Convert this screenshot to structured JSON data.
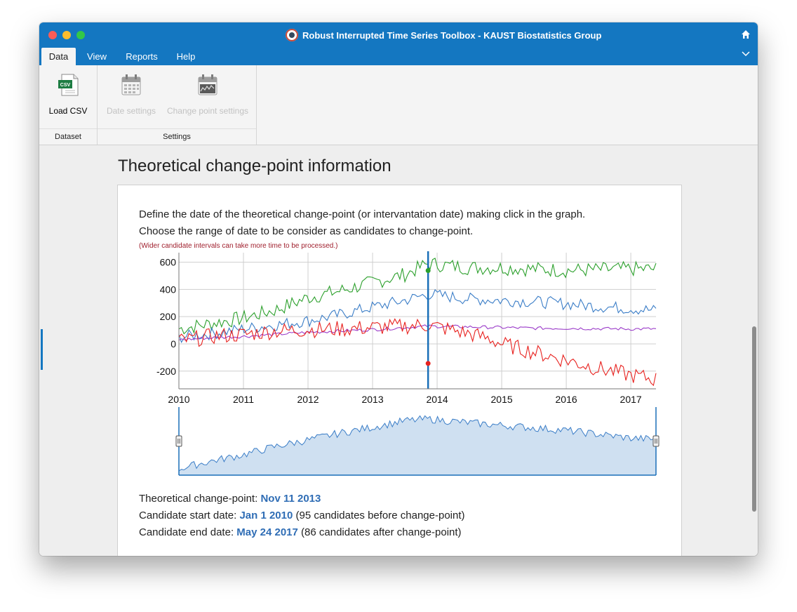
{
  "window": {
    "title": "Robust Interrupted Time Series Toolbox - KAUST Biostatistics Group",
    "traffic_lights": [
      "close-icon",
      "minimize-icon",
      "zoom-icon"
    ],
    "right_icons": [
      "home-icon",
      "chevron-down-icon"
    ]
  },
  "menu": {
    "tabs": [
      {
        "label": "Data",
        "active": true
      },
      {
        "label": "View",
        "active": false
      },
      {
        "label": "Reports",
        "active": false
      },
      {
        "label": "Help",
        "active": false
      }
    ]
  },
  "ribbon": {
    "groups": [
      {
        "label": "Dataset",
        "buttons": [
          {
            "label": "Load CSV",
            "icon": "csv-file-icon",
            "enabled": true
          }
        ]
      },
      {
        "label": "Settings",
        "buttons": [
          {
            "label": "Date settings",
            "icon": "calendar-icon",
            "enabled": false
          },
          {
            "label": "Change point settings",
            "icon": "calendar-chart-icon",
            "enabled": false
          }
        ]
      }
    ]
  },
  "page": {
    "section_title": "Theoretical change-point information",
    "description_1": "Define the date of the theoretical change-point (or intervantation date) making click in the graph.",
    "description_2": "Choose the range of date to be consider as candidates to change-point.",
    "note": "(Wider candidate intervals can take more time to be processed.)"
  },
  "info": {
    "change_point_label": "Theoretical change-point:",
    "change_point_value": "Nov 11 2013",
    "start_label": "Candidate start date:",
    "start_value": "Jan 1 2010",
    "start_extra": "(95 candidates before change-point)",
    "end_label": "Candidate end date:",
    "end_value": "May 24 2017",
    "end_extra": "(86 candidates after change-point)"
  },
  "colors": {
    "accent": "#1477c1",
    "green": "#2ca02c",
    "blue": "#3a7dc7",
    "red": "#e8221f",
    "purple": "#9b3cc9",
    "note": "#a0202e",
    "value_link": "#2f6db5"
  },
  "chart_data": {
    "type": "line",
    "x_range": [
      2010.0,
      2017.39
    ],
    "ylim": [
      -330,
      670
    ],
    "x_ticks": [
      "2010",
      "2011",
      "2012",
      "2013",
      "2014",
      "2015",
      "2016",
      "2017"
    ],
    "y_ticks": [
      "600",
      "400",
      "200",
      "0",
      "-200"
    ],
    "grid": true,
    "change_point": 2013.86,
    "series": [
      {
        "color": "#2ca02c",
        "values": [
          [
            2010.0,
            110
          ],
          [
            2010.5,
            150
          ],
          [
            2011.0,
            190
          ],
          [
            2011.5,
            250
          ],
          [
            2012.0,
            340
          ],
          [
            2012.5,
            390
          ],
          [
            2013.0,
            450
          ],
          [
            2013.5,
            510
          ],
          [
            2013.86,
            590
          ],
          [
            2014.5,
            560
          ],
          [
            2015.0,
            560
          ],
          [
            2015.5,
            550
          ],
          [
            2016.0,
            540
          ],
          [
            2016.5,
            545
          ],
          [
            2017.0,
            550
          ],
          [
            2017.39,
            550
          ]
        ]
      },
      {
        "color": "#3a7dc7",
        "values": [
          [
            2010.0,
            50
          ],
          [
            2010.5,
            75
          ],
          [
            2011.0,
            110
          ],
          [
            2011.5,
            140
          ],
          [
            2012.0,
            170
          ],
          [
            2012.5,
            215
          ],
          [
            2013.0,
            270
          ],
          [
            2013.5,
            320
          ],
          [
            2013.86,
            365
          ],
          [
            2014.5,
            330
          ],
          [
            2015.0,
            320
          ],
          [
            2015.5,
            310
          ],
          [
            2016.0,
            295
          ],
          [
            2016.5,
            275
          ],
          [
            2017.0,
            260
          ],
          [
            2017.39,
            245
          ]
        ]
      },
      {
        "color": "#9b3cc9",
        "values": [
          [
            2010.0,
            30
          ],
          [
            2010.5,
            45
          ],
          [
            2011.0,
            55
          ],
          [
            2011.5,
            70
          ],
          [
            2012.0,
            85
          ],
          [
            2012.5,
            95
          ],
          [
            2013.0,
            105
          ],
          [
            2013.5,
            120
          ],
          [
            2013.86,
            130
          ],
          [
            2014.5,
            125
          ],
          [
            2015.0,
            120
          ],
          [
            2015.5,
            115
          ],
          [
            2016.0,
            115
          ],
          [
            2016.5,
            112
          ],
          [
            2017.0,
            110
          ],
          [
            2017.39,
            110
          ]
        ]
      },
      {
        "color": "#e8221f",
        "values": [
          [
            2010.0,
            20
          ],
          [
            2010.5,
            55
          ],
          [
            2011.0,
            70
          ],
          [
            2011.5,
            95
          ],
          [
            2012.0,
            105
          ],
          [
            2012.5,
            110
          ],
          [
            2013.0,
            120
          ],
          [
            2013.5,
            130
          ],
          [
            2013.86,
            140
          ],
          [
            2014.3,
            95
          ],
          [
            2014.8,
            40
          ],
          [
            2015.0,
            0
          ],
          [
            2015.5,
            -60
          ],
          [
            2016.0,
            -120
          ],
          [
            2016.5,
            -180
          ],
          [
            2017.0,
            -230
          ],
          [
            2017.39,
            -260
          ]
        ]
      }
    ],
    "navigator": {
      "values": [
        [
          2010.0,
          0.1
        ],
        [
          2010.5,
          0.22
        ],
        [
          2011.0,
          0.32
        ],
        [
          2011.5,
          0.45
        ],
        [
          2012.0,
          0.55
        ],
        [
          2012.5,
          0.66
        ],
        [
          2013.0,
          0.75
        ],
        [
          2013.5,
          0.85
        ],
        [
          2013.86,
          0.88
        ],
        [
          2014.5,
          0.82
        ],
        [
          2015.0,
          0.78
        ],
        [
          2015.5,
          0.74
        ],
        [
          2016.0,
          0.7
        ],
        [
          2016.5,
          0.64
        ],
        [
          2017.0,
          0.58
        ],
        [
          2017.39,
          0.56
        ]
      ],
      "selection": [
        "Jan 1 2010",
        "May 24 2017"
      ]
    }
  }
}
